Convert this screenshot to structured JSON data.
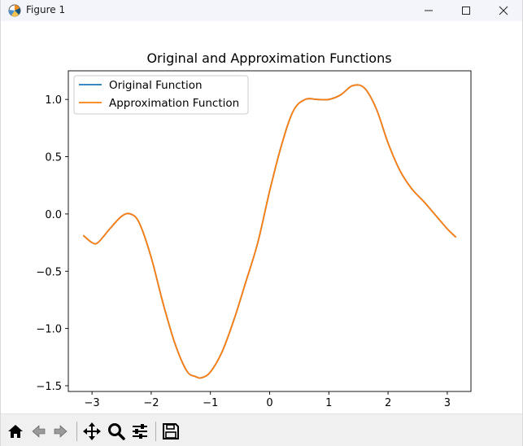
{
  "window": {
    "title": "Figure 1",
    "controls": [
      "minimize",
      "maximize",
      "close"
    ]
  },
  "toolbar": {
    "buttons": [
      {
        "name": "home",
        "icon": "home-icon"
      },
      {
        "name": "back",
        "icon": "back-arrow-icon"
      },
      {
        "name": "forward",
        "icon": "forward-arrow-icon"
      },
      {
        "name": "pan",
        "icon": "move-icon"
      },
      {
        "name": "zoom",
        "icon": "magnifier-icon"
      },
      {
        "name": "configure",
        "icon": "sliders-icon"
      },
      {
        "name": "save",
        "icon": "floppy-icon"
      }
    ]
  },
  "chart_data": {
    "type": "line",
    "title": "Original and Approximation Functions",
    "xlabel": "",
    "ylabel": "",
    "xlim": [
      -3.4,
      3.4
    ],
    "ylim": [
      -1.55,
      1.25
    ],
    "xticks": [
      -3,
      -2,
      -1,
      0,
      1,
      2,
      3
    ],
    "xtick_labels": [
      "−3",
      "−2",
      "−1",
      "0",
      "1",
      "2",
      "3"
    ],
    "yticks": [
      -1.5,
      -1.0,
      -0.5,
      0.0,
      0.5,
      1.0
    ],
    "ytick_labels": [
      "−1.5",
      "−1.0",
      "−0.5",
      "0.0",
      "0.5",
      "1.0"
    ],
    "grid": false,
    "legend_position": "upper-left",
    "x": [
      -3.14,
      -3.0,
      -2.9,
      -2.7,
      -2.5,
      -2.35,
      -2.2,
      -2.0,
      -1.8,
      -1.6,
      -1.4,
      -1.25,
      -1.15,
      -1.0,
      -0.8,
      -0.6,
      -0.4,
      -0.2,
      0.0,
      0.2,
      0.4,
      0.6,
      0.8,
      1.0,
      1.2,
      1.4,
      1.6,
      1.8,
      2.0,
      2.2,
      2.4,
      2.6,
      2.8,
      3.0,
      3.14
    ],
    "series": [
      {
        "name": "Original Function",
        "color": "#1f77b4",
        "values": [
          -0.19,
          -0.25,
          -0.25,
          -0.13,
          -0.02,
          0.0,
          -0.08,
          -0.38,
          -0.78,
          -1.13,
          -1.37,
          -1.42,
          -1.43,
          -1.38,
          -1.2,
          -0.92,
          -0.59,
          -0.25,
          0.2,
          0.6,
          0.9,
          1.0,
          1.0,
          1.0,
          1.04,
          1.12,
          1.1,
          0.92,
          0.62,
          0.38,
          0.22,
          0.11,
          -0.01,
          -0.13,
          -0.2
        ]
      },
      {
        "name": "Approximation Function",
        "color": "#ff7f0e",
        "values": [
          -0.19,
          -0.25,
          -0.25,
          -0.13,
          -0.02,
          0.0,
          -0.08,
          -0.38,
          -0.78,
          -1.13,
          -1.37,
          -1.42,
          -1.43,
          -1.38,
          -1.2,
          -0.92,
          -0.59,
          -0.25,
          0.2,
          0.6,
          0.9,
          1.0,
          1.0,
          1.0,
          1.04,
          1.12,
          1.1,
          0.92,
          0.62,
          0.38,
          0.22,
          0.11,
          -0.01,
          -0.13,
          -0.2
        ]
      }
    ]
  }
}
